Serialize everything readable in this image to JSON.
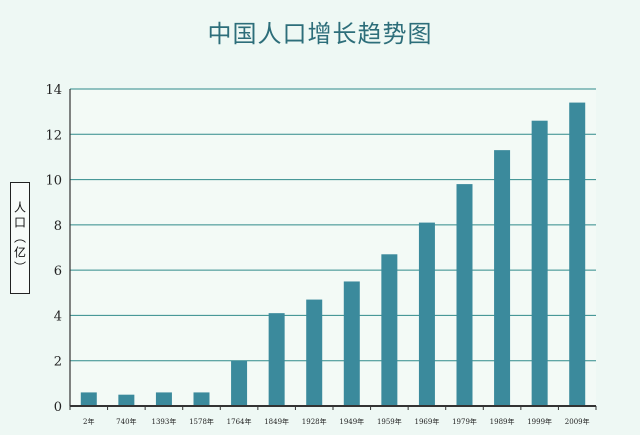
{
  "chart_data": {
    "type": "bar",
    "title": "中国人口增长趋势图",
    "ylabel": "人口（亿）",
    "xlabel": "",
    "categories": [
      "2年",
      "740年",
      "1393年",
      "1578年",
      "1764年",
      "1849年",
      "1928年",
      "1949年",
      "1959年",
      "1969年",
      "1979年",
      "1989年",
      "1999年",
      "2009年"
    ],
    "values": [
      0.6,
      0.5,
      0.6,
      0.6,
      2.0,
      4.1,
      4.7,
      5.5,
      6.7,
      8.1,
      9.8,
      11.3,
      12.6,
      13.4
    ],
    "ylim": [
      0,
      14
    ],
    "yticks": [
      0,
      2,
      4,
      6,
      8,
      10,
      12,
      14
    ],
    "grid": true,
    "bar_color": "#3b8a9c",
    "grid_color": "#2f8a8a"
  }
}
